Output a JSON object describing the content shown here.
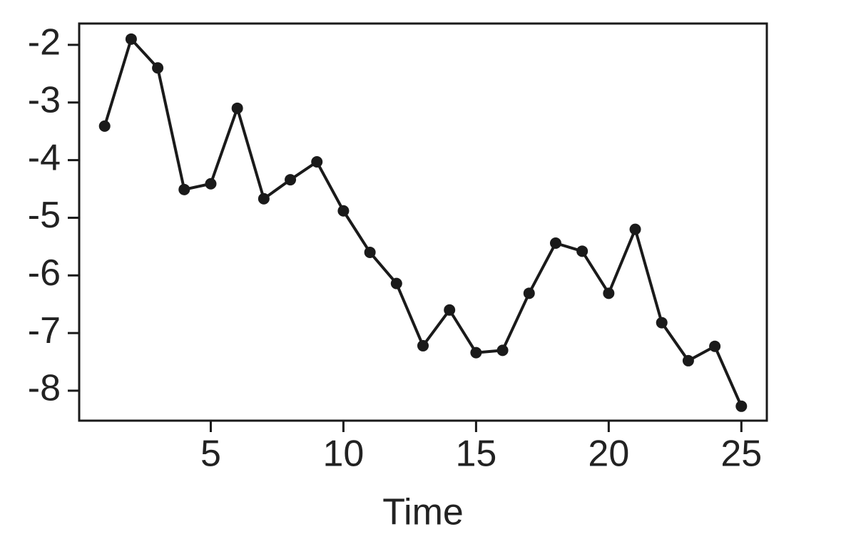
{
  "chart_data": {
    "type": "line",
    "x_label": "Time",
    "x": [
      1,
      2,
      3,
      4,
      5,
      6,
      7,
      8,
      9,
      10,
      11,
      12,
      13,
      14,
      15,
      16,
      17,
      18,
      19,
      20,
      21,
      22,
      23,
      24,
      25
    ],
    "series": [
      {
        "color": "#1a1a1a",
        "values": [
          -3.41,
          -1.9,
          -2.4,
          -4.51,
          -4.41,
          -3.1,
          -4.67,
          -4.34,
          -4.03,
          -4.88,
          -5.6,
          -6.14,
          -7.22,
          -6.6,
          -7.34,
          -7.3,
          -6.31,
          -5.44,
          -5.58,
          -6.31,
          -5.2,
          -6.82,
          -7.48,
          -7.23,
          -8.27
        ]
      }
    ],
    "xlim": [
      0.04,
      25.96
    ],
    "xticks": [
      5,
      10,
      15,
      20,
      25
    ],
    "ylim": [
      -8.52,
      -1.63
    ],
    "yticks": [
      -2,
      -3,
      -4,
      -5,
      -6,
      -7,
      -8
    ],
    "markers": true
  }
}
